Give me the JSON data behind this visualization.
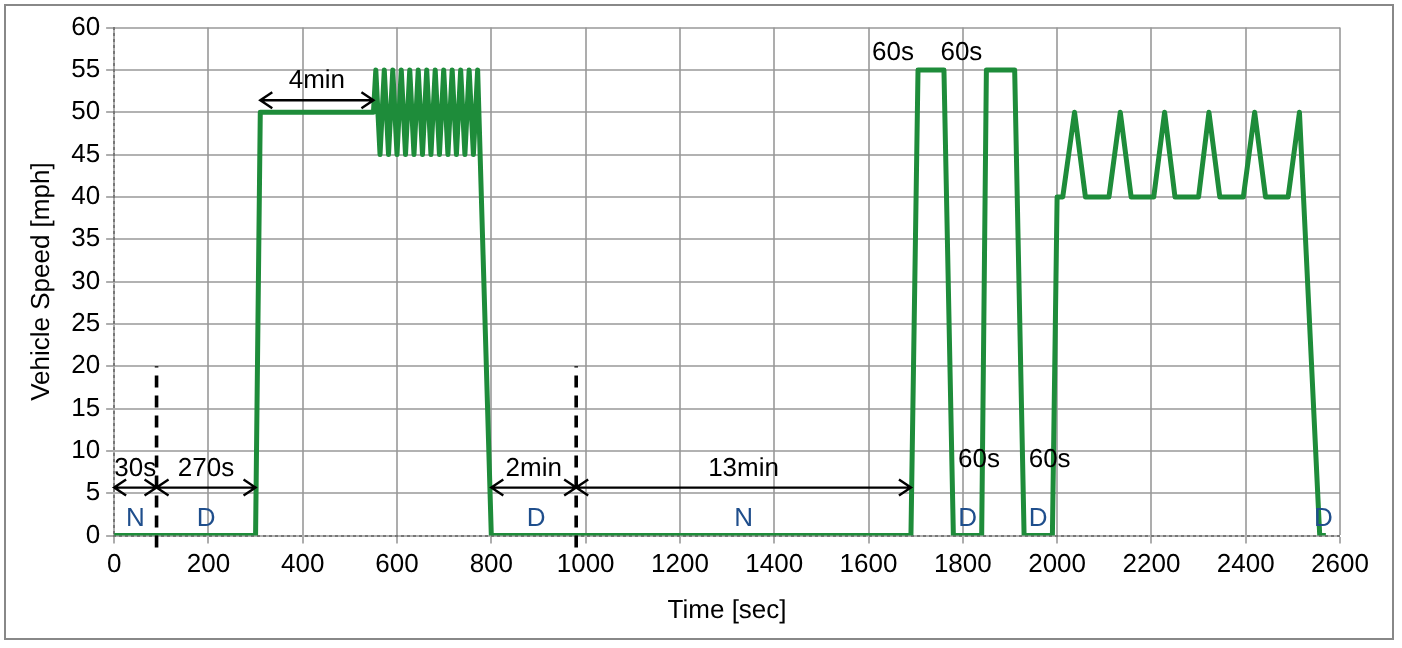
{
  "chart_data": {
    "type": "line",
    "xlabel": "Time [sec]",
    "ylabel": "Vehicle Speed [mph]",
    "xlim": [
      0,
      2600
    ],
    "xticks": [
      0,
      200,
      400,
      600,
      800,
      1000,
      1200,
      1400,
      1600,
      1800,
      2000,
      2200,
      2400,
      2600
    ],
    "ylim": [
      0,
      60
    ],
    "yticks": [
      0,
      5,
      10,
      15,
      20,
      25,
      30,
      35,
      40,
      45,
      50,
      55,
      60
    ],
    "grid": true,
    "legend": false,
    "marker": "none",
    "line_style": "solid",
    "series": [
      {
        "color": "#1e8c3a",
        "x": [
          0,
          300,
          310,
          550,
          555,
          564,
          573,
          582,
          591,
          600,
          609,
          618,
          627,
          636,
          645,
          654,
          663,
          672,
          681,
          690,
          699,
          708,
          717,
          726,
          735,
          744,
          753,
          762,
          771,
          800,
          1690,
          1705,
          1760,
          1780,
          1840,
          1850,
          1910,
          1930,
          1990,
          2000,
          2012,
          2037,
          2060,
          2110,
          2134,
          2157,
          2205,
          2228,
          2250,
          2300,
          2322,
          2345,
          2395,
          2419,
          2442,
          2490,
          2514,
          2557,
          2570
        ],
        "values": [
          0,
          0,
          50,
          50,
          55,
          45,
          55,
          45,
          55,
          45,
          55,
          45,
          55,
          45,
          55,
          45,
          55,
          45,
          55,
          45,
          55,
          45,
          55,
          45,
          55,
          45,
          55,
          45,
          55,
          0,
          0,
          55,
          55,
          0,
          0,
          55,
          55,
          0,
          0,
          40,
          40,
          50,
          40,
          40,
          50,
          40,
          40,
          50,
          40,
          40,
          50,
          40,
          40,
          50,
          40,
          40,
          50,
          0,
          0
        ]
      }
    ],
    "ref_lines": [
      {
        "axis": "x",
        "value": 90,
        "line_style": "dashed"
      },
      {
        "axis": "x",
        "value": 980,
        "line_style": "dashed"
      }
    ],
    "annotations": [
      {
        "text": "30s",
        "x": 45,
        "y": 0
      },
      {
        "text": "270s",
        "x": 195,
        "y": 0
      },
      {
        "text": "4min",
        "x": 430,
        "y": 50
      },
      {
        "text": "2min",
        "x": 895,
        "y": 0
      },
      {
        "text": "13min",
        "x": 1335,
        "y": 0
      },
      {
        "text": "60s",
        "x": 1705,
        "y": 55
      },
      {
        "text": "60s",
        "x": 1850,
        "y": 55
      },
      {
        "text": "60s",
        "x": 1777,
        "y": 9
      },
      {
        "text": "60s",
        "x": 1927,
        "y": 9
      },
      {
        "text": "N",
        "x": 45,
        "y": 0
      },
      {
        "text": "D",
        "x": 195,
        "y": 0
      },
      {
        "text": "D",
        "x": 895,
        "y": 0
      },
      {
        "text": "N",
        "x": 1335,
        "y": 0
      },
      {
        "text": "D",
        "x": 1810,
        "y": 0
      },
      {
        "text": "D",
        "x": 1960,
        "y": 0
      },
      {
        "text": "D",
        "x": 2565,
        "y": 0
      }
    ]
  }
}
